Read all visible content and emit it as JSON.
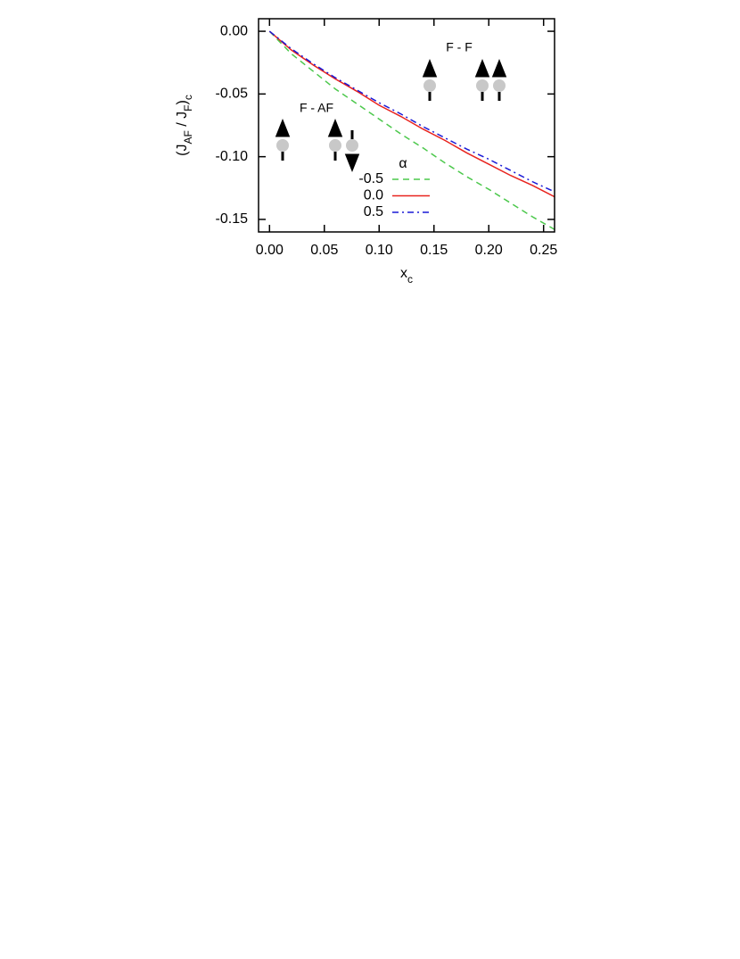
{
  "chart_data": {
    "type": "line",
    "ylabel": [
      {
        "text": "(J"
      },
      {
        "text": "AF",
        "sub": true
      },
      {
        "text": " / J"
      },
      {
        "text": "F",
        "sub": true
      },
      {
        "text": ")"
      },
      {
        "text": "c",
        "sub": true
      }
    ],
    "xlabel": [
      {
        "text": "x"
      },
      {
        "text": "c",
        "sub": true
      }
    ],
    "legend_title": "α",
    "annotations": [
      "F - AF",
      "F - F"
    ],
    "x": [
      0,
      0.02,
      0.04,
      0.06,
      0.08,
      0.1,
      0.12,
      0.14,
      0.16,
      0.18,
      0.2,
      0.22,
      0.24,
      0.26
    ],
    "series": [
      {
        "name": "-0.5",
        "color": "#4cc84c",
        "dash": "dashed",
        "values": [
          0,
          -0.018,
          -0.032,
          -0.046,
          -0.058,
          -0.07,
          -0.082,
          -0.093,
          -0.105,
          -0.116,
          -0.126,
          -0.137,
          -0.148,
          -0.158
        ]
      },
      {
        "name": "0.0",
        "color": "#e8231e",
        "dash": "solid",
        "values": [
          0,
          -0.015,
          -0.027,
          -0.038,
          -0.048,
          -0.059,
          -0.068,
          -0.078,
          -0.087,
          -0.097,
          -0.106,
          -0.115,
          -0.123,
          -0.132
        ]
      },
      {
        "name": "0.5",
        "color": "#1a1ad6",
        "dash": "dashdot",
        "values": [
          0,
          -0.014,
          -0.026,
          -0.037,
          -0.047,
          -0.057,
          -0.066,
          -0.076,
          -0.085,
          -0.094,
          -0.102,
          -0.111,
          -0.12,
          -0.128
        ]
      }
    ],
    "xlim": [
      -0.01,
      0.26
    ],
    "ylim": [
      -0.16,
      0.01
    ],
    "xticks": [
      {
        "value": 0,
        "label": "0.00"
      },
      {
        "value": 0.05,
        "label": "0.05"
      },
      {
        "value": 0.1,
        "label": "0.10"
      },
      {
        "value": 0.15,
        "label": "0.15"
      },
      {
        "value": 0.2,
        "label": "0.20"
      },
      {
        "value": 0.25,
        "label": "0.25"
      }
    ],
    "yticks": [
      {
        "value": 0,
        "label": "0.00"
      },
      {
        "value": -0.05,
        "label": "-0.05"
      },
      {
        "value": -0.1,
        "label": "-0.10"
      },
      {
        "value": -0.15,
        "label": "-0.15"
      }
    ],
    "grid": false
  }
}
